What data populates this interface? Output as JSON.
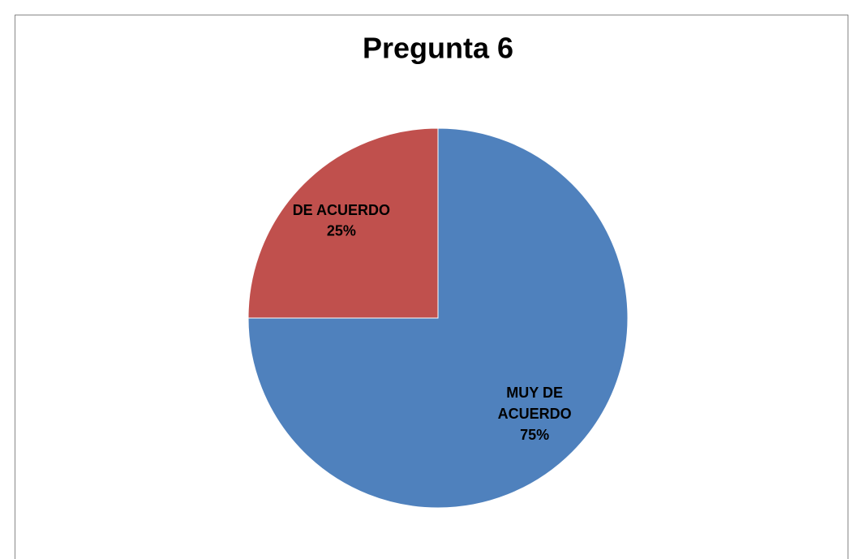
{
  "chart_data": {
    "type": "pie",
    "title": "Pregunta 6",
    "categories": [
      "MUY DE ACUERDO",
      "DE ACUERDO"
    ],
    "values": [
      75,
      25
    ],
    "value_labels": [
      "75%",
      "25%"
    ],
    "colors": [
      "#4f81bd",
      "#c0504d"
    ]
  }
}
